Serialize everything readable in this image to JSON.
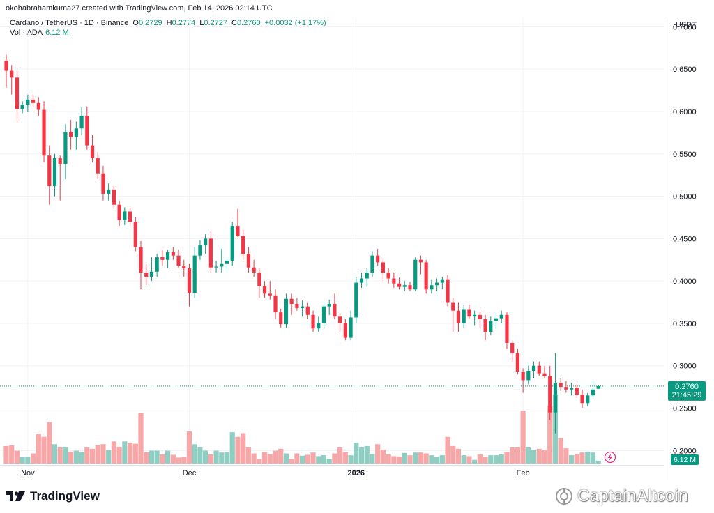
{
  "credit": "okohabrahamkuma27 created with TradingView.com, Feb 14, 2026 02:14 UTC",
  "legend": {
    "symbol": "Cardano / TetherUS · 1D · Binance",
    "open_label": "O",
    "open": "0.2729",
    "high_label": "H",
    "high": "0.2774",
    "low_label": "L",
    "low": "0.2727",
    "close_label": "C",
    "close": "0.2760",
    "change": "+0.0032 (+1.17%)",
    "volume_label": "Vol · ADA",
    "volume": "6.12 M"
  },
  "price_tag": {
    "price": "0.2760",
    "countdown": "21:45:29"
  },
  "volume_tag": "6.12 M",
  "branding": {
    "logo_text": "TradingView",
    "watermark": "CaptainAltcoin"
  },
  "colors": {
    "up": "#089981",
    "down": "#f23645",
    "up_vol": "#8fcfc3",
    "down_vol": "#f7a7a7",
    "grid": "#f0f3fa"
  },
  "chart_data": {
    "type": "candlestick",
    "currency": "USDT",
    "y_ticks": [
      "0.7000",
      "0.6500",
      "0.6000",
      "0.5500",
      "0.5000",
      "0.4500",
      "0.4000",
      "0.3500",
      "0.3000",
      "0.2500",
      "0.2000"
    ],
    "ylim": [
      0.183,
      0.711
    ],
    "x_labels": [
      {
        "i": 4,
        "text": "Nov"
      },
      {
        "i": 34,
        "text": "Dec"
      },
      {
        "i": 65,
        "text": "2026"
      },
      {
        "i": 96,
        "text": "Feb"
      }
    ],
    "volume_units": "M ADA (approx.)",
    "candles": [
      {
        "o": 0.66,
        "h": 0.667,
        "l": 0.628,
        "c": 0.648,
        "v": 38
      },
      {
        "o": 0.648,
        "h": 0.655,
        "l": 0.62,
        "c": 0.64,
        "v": 40
      },
      {
        "o": 0.64,
        "h": 0.648,
        "l": 0.588,
        "c": 0.603,
        "v": 28
      },
      {
        "o": 0.603,
        "h": 0.612,
        "l": 0.598,
        "c": 0.608,
        "v": 14
      },
      {
        "o": 0.608,
        "h": 0.62,
        "l": 0.6,
        "c": 0.614,
        "v": 14
      },
      {
        "o": 0.614,
        "h": 0.62,
        "l": 0.605,
        "c": 0.61,
        "v": 22
      },
      {
        "o": 0.61,
        "h": 0.617,
        "l": 0.595,
        "c": 0.602,
        "v": 65
      },
      {
        "o": 0.602,
        "h": 0.612,
        "l": 0.54,
        "c": 0.548,
        "v": 58
      },
      {
        "o": 0.548,
        "h": 0.56,
        "l": 0.49,
        "c": 0.512,
        "v": 90
      },
      {
        "o": 0.512,
        "h": 0.55,
        "l": 0.5,
        "c": 0.545,
        "v": 42
      },
      {
        "o": 0.545,
        "h": 0.548,
        "l": 0.495,
        "c": 0.538,
        "v": 35
      },
      {
        "o": 0.538,
        "h": 0.585,
        "l": 0.52,
        "c": 0.576,
        "v": 36
      },
      {
        "o": 0.576,
        "h": 0.59,
        "l": 0.555,
        "c": 0.57,
        "v": 26
      },
      {
        "o": 0.57,
        "h": 0.588,
        "l": 0.555,
        "c": 0.58,
        "v": 28
      },
      {
        "o": 0.58,
        "h": 0.605,
        "l": 0.572,
        "c": 0.595,
        "v": 25
      },
      {
        "o": 0.595,
        "h": 0.606,
        "l": 0.555,
        "c": 0.56,
        "v": 35
      },
      {
        "o": 0.56,
        "h": 0.572,
        "l": 0.54,
        "c": 0.545,
        "v": 32
      },
      {
        "o": 0.545,
        "h": 0.552,
        "l": 0.52,
        "c": 0.527,
        "v": 40
      },
      {
        "o": 0.527,
        "h": 0.536,
        "l": 0.495,
        "c": 0.503,
        "v": 42
      },
      {
        "o": 0.503,
        "h": 0.515,
        "l": 0.495,
        "c": 0.508,
        "v": 30
      },
      {
        "o": 0.508,
        "h": 0.512,
        "l": 0.485,
        "c": 0.49,
        "v": 48
      },
      {
        "o": 0.49,
        "h": 0.495,
        "l": 0.465,
        "c": 0.472,
        "v": 36
      },
      {
        "o": 0.472,
        "h": 0.487,
        "l": 0.466,
        "c": 0.482,
        "v": 48
      },
      {
        "o": 0.482,
        "h": 0.487,
        "l": 0.465,
        "c": 0.47,
        "v": 45
      },
      {
        "o": 0.47,
        "h": 0.475,
        "l": 0.435,
        "c": 0.44,
        "v": 43
      },
      {
        "o": 0.44,
        "h": 0.447,
        "l": 0.39,
        "c": 0.41,
        "v": 110
      },
      {
        "o": 0.41,
        "h": 0.42,
        "l": 0.395,
        "c": 0.405,
        "v": 25
      },
      {
        "o": 0.405,
        "h": 0.428,
        "l": 0.4,
        "c": 0.411,
        "v": 28
      },
      {
        "o": 0.411,
        "h": 0.432,
        "l": 0.405,
        "c": 0.428,
        "v": 28
      },
      {
        "o": 0.428,
        "h": 0.437,
        "l": 0.418,
        "c": 0.425,
        "v": 20
      },
      {
        "o": 0.425,
        "h": 0.437,
        "l": 0.415,
        "c": 0.434,
        "v": 28
      },
      {
        "o": 0.434,
        "h": 0.44,
        "l": 0.425,
        "c": 0.43,
        "v": 19
      },
      {
        "o": 0.43,
        "h": 0.437,
        "l": 0.415,
        "c": 0.418,
        "v": 13
      },
      {
        "o": 0.418,
        "h": 0.425,
        "l": 0.405,
        "c": 0.415,
        "v": 14
      },
      {
        "o": 0.415,
        "h": 0.42,
        "l": 0.37,
        "c": 0.386,
        "v": 70
      },
      {
        "o": 0.386,
        "h": 0.44,
        "l": 0.38,
        "c": 0.43,
        "v": 42
      },
      {
        "o": 0.43,
        "h": 0.448,
        "l": 0.425,
        "c": 0.442,
        "v": 35
      },
      {
        "o": 0.442,
        "h": 0.455,
        "l": 0.432,
        "c": 0.45,
        "v": 28
      },
      {
        "o": 0.45,
        "h": 0.458,
        "l": 0.41,
        "c": 0.416,
        "v": 20
      },
      {
        "o": 0.416,
        "h": 0.424,
        "l": 0.41,
        "c": 0.417,
        "v": 28
      },
      {
        "o": 0.417,
        "h": 0.438,
        "l": 0.41,
        "c": 0.42,
        "v": 24
      },
      {
        "o": 0.42,
        "h": 0.428,
        "l": 0.412,
        "c": 0.424,
        "v": 25
      },
      {
        "o": 0.424,
        "h": 0.47,
        "l": 0.418,
        "c": 0.465,
        "v": 68
      },
      {
        "o": 0.465,
        "h": 0.485,
        "l": 0.452,
        "c": 0.453,
        "v": 58
      },
      {
        "o": 0.453,
        "h": 0.46,
        "l": 0.425,
        "c": 0.432,
        "v": 66
      },
      {
        "o": 0.432,
        "h": 0.44,
        "l": 0.41,
        "c": 0.416,
        "v": 35
      },
      {
        "o": 0.416,
        "h": 0.425,
        "l": 0.405,
        "c": 0.41,
        "v": 22
      },
      {
        "o": 0.41,
        "h": 0.415,
        "l": 0.38,
        "c": 0.394,
        "v": 10
      },
      {
        "o": 0.394,
        "h": 0.4,
        "l": 0.38,
        "c": 0.385,
        "v": 25
      },
      {
        "o": 0.385,
        "h": 0.4,
        "l": 0.378,
        "c": 0.383,
        "v": 20
      },
      {
        "o": 0.383,
        "h": 0.39,
        "l": 0.355,
        "c": 0.363,
        "v": 28
      },
      {
        "o": 0.363,
        "h": 0.367,
        "l": 0.345,
        "c": 0.349,
        "v": 32
      },
      {
        "o": 0.349,
        "h": 0.385,
        "l": 0.345,
        "c": 0.379,
        "v": 22
      },
      {
        "o": 0.379,
        "h": 0.385,
        "l": 0.36,
        "c": 0.373,
        "v": 10
      },
      {
        "o": 0.373,
        "h": 0.38,
        "l": 0.365,
        "c": 0.368,
        "v": 22
      },
      {
        "o": 0.368,
        "h": 0.377,
        "l": 0.358,
        "c": 0.37,
        "v": 17
      },
      {
        "o": 0.37,
        "h": 0.375,
        "l": 0.355,
        "c": 0.36,
        "v": 19
      },
      {
        "o": 0.36,
        "h": 0.365,
        "l": 0.34,
        "c": 0.344,
        "v": 24
      },
      {
        "o": 0.344,
        "h": 0.358,
        "l": 0.34,
        "c": 0.35,
        "v": 16
      },
      {
        "o": 0.35,
        "h": 0.375,
        "l": 0.345,
        "c": 0.37,
        "v": 18
      },
      {
        "o": 0.37,
        "h": 0.378,
        "l": 0.36,
        "c": 0.373,
        "v": 10
      },
      {
        "o": 0.373,
        "h": 0.385,
        "l": 0.355,
        "c": 0.358,
        "v": 22
      },
      {
        "o": 0.358,
        "h": 0.362,
        "l": 0.34,
        "c": 0.35,
        "v": 35
      },
      {
        "o": 0.35,
        "h": 0.355,
        "l": 0.33,
        "c": 0.333,
        "v": 25
      },
      {
        "o": 0.333,
        "h": 0.365,
        "l": 0.33,
        "c": 0.357,
        "v": 18
      },
      {
        "o": 0.357,
        "h": 0.405,
        "l": 0.35,
        "c": 0.398,
        "v": 45
      },
      {
        "o": 0.398,
        "h": 0.41,
        "l": 0.392,
        "c": 0.403,
        "v": 35
      },
      {
        "o": 0.403,
        "h": 0.415,
        "l": 0.393,
        "c": 0.41,
        "v": 38
      },
      {
        "o": 0.41,
        "h": 0.435,
        "l": 0.405,
        "c": 0.43,
        "v": 21
      },
      {
        "o": 0.43,
        "h": 0.438,
        "l": 0.418,
        "c": 0.422,
        "v": 42
      },
      {
        "o": 0.422,
        "h": 0.427,
        "l": 0.4,
        "c": 0.41,
        "v": 30
      },
      {
        "o": 0.41,
        "h": 0.415,
        "l": 0.397,
        "c": 0.403,
        "v": 20
      },
      {
        "o": 0.403,
        "h": 0.41,
        "l": 0.392,
        "c": 0.397,
        "v": 16
      },
      {
        "o": 0.397,
        "h": 0.404,
        "l": 0.39,
        "c": 0.393,
        "v": 15
      },
      {
        "o": 0.393,
        "h": 0.4,
        "l": 0.388,
        "c": 0.395,
        "v": 23
      },
      {
        "o": 0.395,
        "h": 0.399,
        "l": 0.388,
        "c": 0.39,
        "v": 18
      },
      {
        "o": 0.39,
        "h": 0.428,
        "l": 0.388,
        "c": 0.425,
        "v": 24
      },
      {
        "o": 0.425,
        "h": 0.43,
        "l": 0.408,
        "c": 0.422,
        "v": 24
      },
      {
        "o": 0.422,
        "h": 0.425,
        "l": 0.385,
        "c": 0.39,
        "v": 22
      },
      {
        "o": 0.39,
        "h": 0.402,
        "l": 0.385,
        "c": 0.395,
        "v": 18
      },
      {
        "o": 0.395,
        "h": 0.403,
        "l": 0.388,
        "c": 0.398,
        "v": 14
      },
      {
        "o": 0.398,
        "h": 0.405,
        "l": 0.39,
        "c": 0.402,
        "v": 18
      },
      {
        "o": 0.402,
        "h": 0.407,
        "l": 0.37,
        "c": 0.375,
        "v": 58
      },
      {
        "o": 0.375,
        "h": 0.38,
        "l": 0.34,
        "c": 0.365,
        "v": 38
      },
      {
        "o": 0.365,
        "h": 0.375,
        "l": 0.34,
        "c": 0.35,
        "v": 32
      },
      {
        "o": 0.35,
        "h": 0.372,
        "l": 0.345,
        "c": 0.366,
        "v": 18
      },
      {
        "o": 0.366,
        "h": 0.372,
        "l": 0.355,
        "c": 0.358,
        "v": 16
      },
      {
        "o": 0.358,
        "h": 0.365,
        "l": 0.348,
        "c": 0.36,
        "v": 8
      },
      {
        "o": 0.36,
        "h": 0.364,
        "l": 0.345,
        "c": 0.355,
        "v": 20
      },
      {
        "o": 0.355,
        "h": 0.36,
        "l": 0.33,
        "c": 0.34,
        "v": 15
      },
      {
        "o": 0.34,
        "h": 0.358,
        "l": 0.336,
        "c": 0.353,
        "v": 18
      },
      {
        "o": 0.353,
        "h": 0.362,
        "l": 0.345,
        "c": 0.356,
        "v": 18
      },
      {
        "o": 0.356,
        "h": 0.365,
        "l": 0.35,
        "c": 0.36,
        "v": 20
      },
      {
        "o": 0.36,
        "h": 0.363,
        "l": 0.32,
        "c": 0.327,
        "v": 25
      },
      {
        "o": 0.327,
        "h": 0.33,
        "l": 0.305,
        "c": 0.315,
        "v": 35
      },
      {
        "o": 0.315,
        "h": 0.32,
        "l": 0.29,
        "c": 0.293,
        "v": 35
      },
      {
        "o": 0.293,
        "h": 0.297,
        "l": 0.268,
        "c": 0.283,
        "v": 115
      },
      {
        "o": 0.283,
        "h": 0.3,
        "l": 0.278,
        "c": 0.294,
        "v": 35
      },
      {
        "o": 0.294,
        "h": 0.305,
        "l": 0.285,
        "c": 0.3,
        "v": 30
      },
      {
        "o": 0.3,
        "h": 0.305,
        "l": 0.288,
        "c": 0.291,
        "v": 32
      },
      {
        "o": 0.291,
        "h": 0.3,
        "l": 0.285,
        "c": 0.288,
        "v": 30
      },
      {
        "o": 0.288,
        "h": 0.3,
        "l": 0.236,
        "c": 0.245,
        "v": 125
      },
      {
        "o": 0.245,
        "h": 0.315,
        "l": 0.22,
        "c": 0.28,
        "v": 150
      },
      {
        "o": 0.28,
        "h": 0.285,
        "l": 0.27,
        "c": 0.275,
        "v": 55
      },
      {
        "o": 0.275,
        "h": 0.282,
        "l": 0.268,
        "c": 0.272,
        "v": 33
      },
      {
        "o": 0.272,
        "h": 0.28,
        "l": 0.265,
        "c": 0.274,
        "v": 18
      },
      {
        "o": 0.274,
        "h": 0.278,
        "l": 0.262,
        "c": 0.266,
        "v": 20
      },
      {
        "o": 0.266,
        "h": 0.272,
        "l": 0.25,
        "c": 0.256,
        "v": 24
      },
      {
        "o": 0.256,
        "h": 0.268,
        "l": 0.252,
        "c": 0.265,
        "v": 26
      },
      {
        "o": 0.265,
        "h": 0.282,
        "l": 0.262,
        "c": 0.272,
        "v": 24
      },
      {
        "o": 0.2729,
        "h": 0.2774,
        "l": 0.2727,
        "c": 0.276,
        "v": 6.12
      }
    ]
  }
}
